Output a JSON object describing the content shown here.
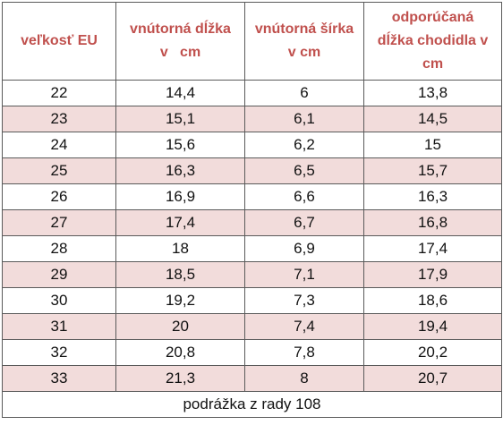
{
  "header": {
    "col1": [
      "veľkosť EU"
    ],
    "col2": [
      "vnútorná dĺžka",
      "v   cm"
    ],
    "col3": [
      "vnútorná šírka",
      "v cm"
    ],
    "col4": [
      "odporúčaná",
      "dĺžka chodidla v",
      "cm"
    ]
  },
  "rows": [
    {
      "size": "22",
      "length": "14,4",
      "width": "6",
      "foot": "13,8"
    },
    {
      "size": "23",
      "length": "15,1",
      "width": "6,1",
      "foot": "14,5"
    },
    {
      "size": "24",
      "length": "15,6",
      "width": "6,2",
      "foot": "15"
    },
    {
      "size": "25",
      "length": "16,3",
      "width": "6,5",
      "foot": "15,7"
    },
    {
      "size": "26",
      "length": "16,9",
      "width": "6,6",
      "foot": "16,3"
    },
    {
      "size": "27",
      "length": "17,4",
      "width": "6,7",
      "foot": "16,8"
    },
    {
      "size": "28",
      "length": "18",
      "width": "6,9",
      "foot": "17,4"
    },
    {
      "size": "29",
      "length": "18,5",
      "width": "7,1",
      "foot": "17,9"
    },
    {
      "size": "30",
      "length": "19,2",
      "width": "7,3",
      "foot": "18,6"
    },
    {
      "size": "31",
      "length": "20",
      "width": "7,4",
      "foot": "19,4"
    },
    {
      "size": "32",
      "length": "20,8",
      "width": "7,8",
      "foot": "20,2"
    },
    {
      "size": "33",
      "length": "21,3",
      "width": "8",
      "foot": "20,7"
    }
  ],
  "footer": "podrážka z rady 108",
  "colors": {
    "header_text": "#c0504d",
    "stripe": "#f2dcdb",
    "border": "#5a5a5a"
  }
}
